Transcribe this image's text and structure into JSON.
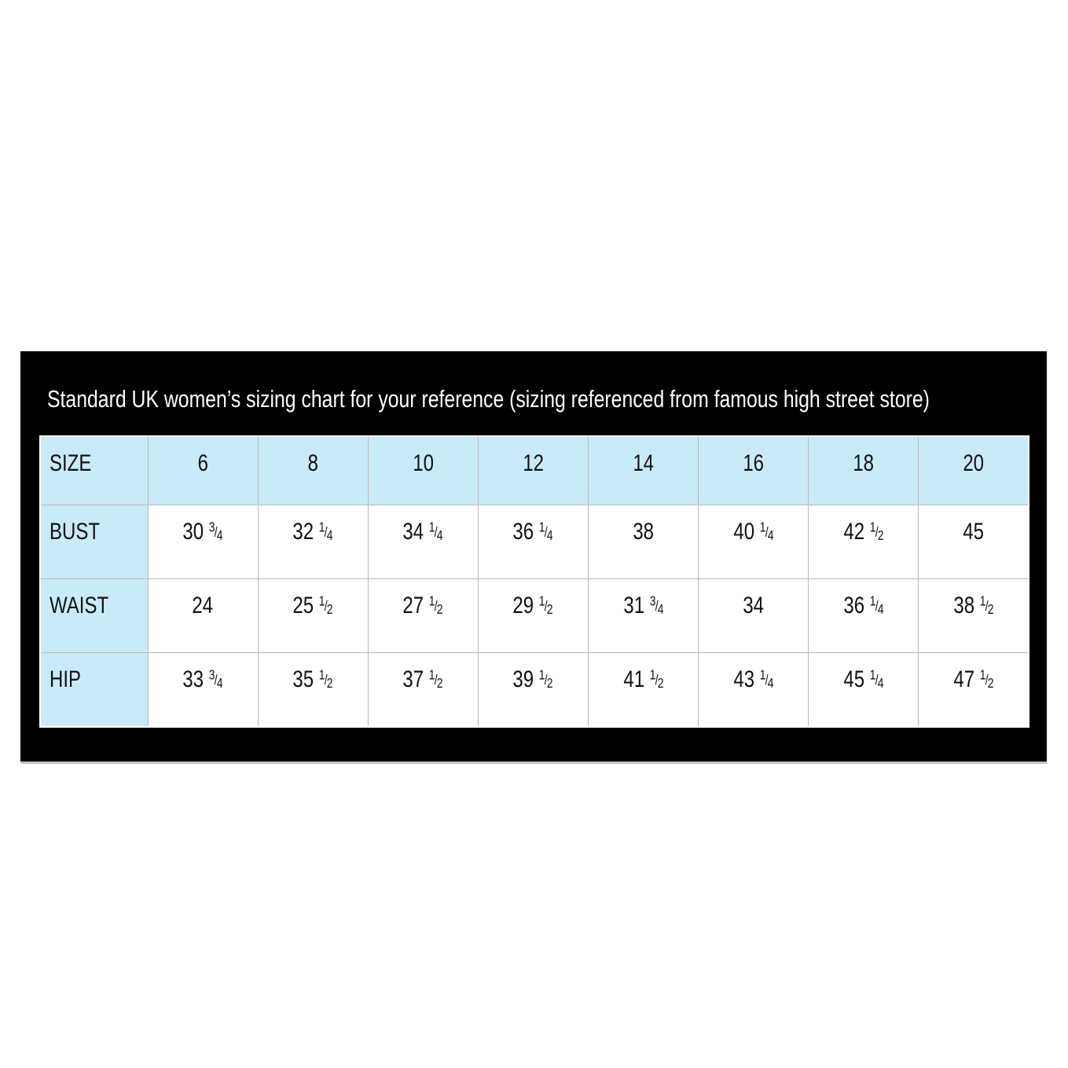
{
  "title": "Standard UK women’s sizing chart for your reference (sizing referenced from famous high street store)",
  "colors": {
    "panel_bg": "#000000",
    "title_text": "#ffffff",
    "header_bg": "#c9ebf8",
    "grid_line": "#b9b9b9",
    "cell_bg": "#ffffff",
    "cell_text": "#111111"
  },
  "chart_data": {
    "type": "table",
    "title": "Standard UK women’s sizing chart for your reference (sizing referenced from famous high street store)",
    "columns": [
      "SIZE",
      "6",
      "8",
      "10",
      "12",
      "14",
      "16",
      "18",
      "20"
    ],
    "rows": [
      {
        "label": "BUST",
        "values": [
          "30 3/4",
          "32 1/4",
          "34 1/4",
          "36 1/4",
          "38",
          "40 1/4",
          "42 1/2",
          "45"
        ]
      },
      {
        "label": "WAIST",
        "values": [
          "24",
          "25 1/2",
          "27 1/2",
          "29 1/2",
          "31 3/4",
          "34",
          "36 1/4",
          "38 1/2"
        ]
      },
      {
        "label": "HIP",
        "values": [
          "33 3/4",
          "35 1/2",
          "37 1/2",
          "39 1/2",
          "41 1/2",
          "43 1/4",
          "45 1/4",
          "47 1/2"
        ]
      }
    ]
  }
}
